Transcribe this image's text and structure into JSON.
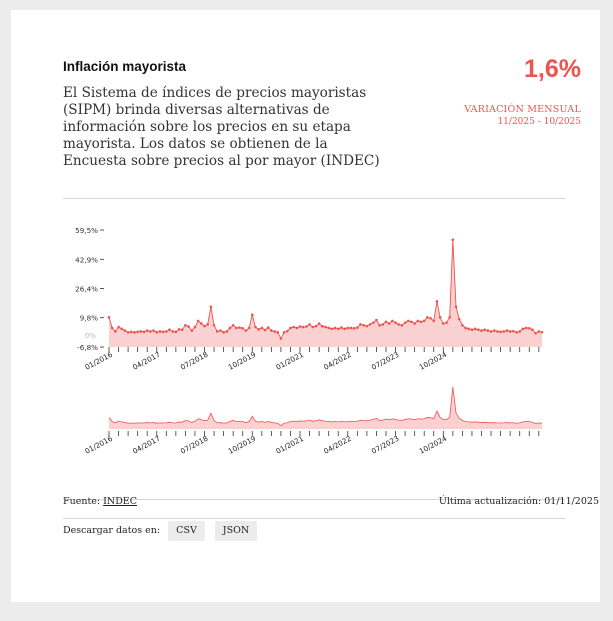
{
  "header": {
    "title": "Inflación mayorista",
    "description": "El Sistema de índices de precios mayoristas (SIPM) brinda diversas alternativas de información sobre los precios en su etapa mayorista. Los datos se obtienen de la Encuesta sobre precios al por mayor (INDEC)",
    "value": "1,6%",
    "metric_label": "VARIACIÓN MENSUAL",
    "metric_range": "11/2025 - 10/2025"
  },
  "footer": {
    "source_label": "Fuente:",
    "source_link": "INDEC",
    "updated": "Última actualización: 01/11/2025",
    "download_label": "Descargar datos en:",
    "csv_label": "CSV",
    "json_label": "JSON"
  },
  "colors": {
    "accent": "#ef5350",
    "fill": "#f8c9c9"
  },
  "chart_data": {
    "type": "area",
    "unit": "%",
    "ytick_labels": [
      "59,5%",
      "42,9%",
      "26,4%",
      "9,8%",
      "0%",
      "-6,8%"
    ],
    "ytick_values": [
      59.5,
      42.9,
      26.4,
      9.8,
      0,
      -6.8
    ],
    "ylim": [
      -6.8,
      59.5
    ],
    "xtick_labels": [
      "01/2016",
      "04/2017",
      "07/2018",
      "10/2019",
      "01/2021",
      "04/2022",
      "07/2023",
      "10/2024"
    ],
    "x_start": "01/2016",
    "x_end": "10/2025",
    "values": [
      10.0,
      4.0,
      2.0,
      4.5,
      3.5,
      2.5,
      1.5,
      1.8,
      1.5,
      1.8,
      2.0,
      1.8,
      2.5,
      2.0,
      2.5,
      1.5,
      2.0,
      1.8,
      2.0,
      3.0,
      2.0,
      1.8,
      3.2,
      3.0,
      5.5,
      4.8,
      2.5,
      4.5,
      8.0,
      6.5,
      5.0,
      6.0,
      16.0,
      5.5,
      2.0,
      2.5,
      1.5,
      2.0,
      4.0,
      5.5,
      4.0,
      4.2,
      3.8,
      2.5,
      4.0,
      11.5,
      4.5,
      3.2,
      4.0,
      2.8,
      4.2,
      2.5,
      2.0,
      1.5,
      -2.0,
      1.5,
      2.2,
      4.0,
      4.5,
      4.0,
      4.8,
      4.5,
      4.8,
      6.0,
      4.5,
      5.0,
      6.5,
      5.0,
      4.5,
      4.0,
      3.5,
      4.0,
      3.5,
      4.2,
      3.5,
      4.0,
      4.0,
      3.8,
      4.2,
      6.0,
      5.5,
      5.0,
      6.0,
      7.0,
      8.5,
      5.5,
      6.0,
      7.5,
      6.5,
      8.0,
      7.0,
      6.0,
      5.5,
      7.0,
      8.0,
      7.5,
      6.5,
      8.0,
      7.5,
      8.0,
      10.0,
      9.5,
      8.0,
      19.0,
      10.0,
      6.5,
      7.0,
      10.0,
      54.0,
      16.0,
      9.0,
      5.5,
      4.0,
      3.5,
      3.0,
      3.5,
      3.0,
      2.5,
      3.0,
      2.5,
      2.0,
      2.5,
      2.0,
      1.8,
      2.0,
      2.5,
      2.0,
      2.2,
      1.5,
      2.0,
      3.5,
      4.0,
      3.8,
      3.0,
      1.0,
      2.0,
      1.6
    ]
  }
}
